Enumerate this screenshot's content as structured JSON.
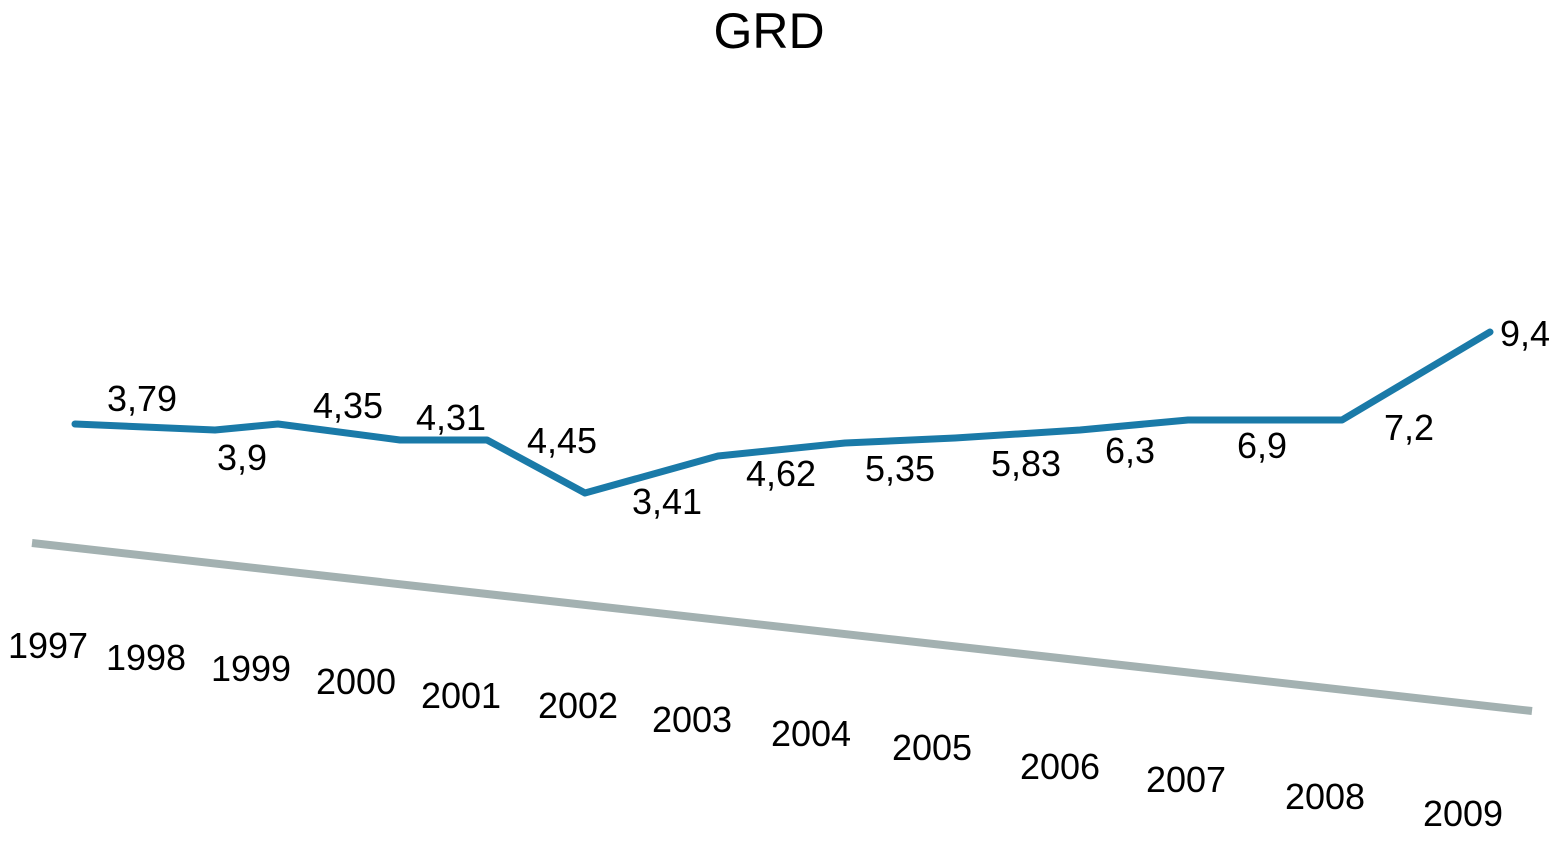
{
  "chart_data": {
    "type": "line",
    "title": "GRD",
    "xlabel": "",
    "ylabel": "",
    "categories": [
      "1997",
      "1998",
      "1999",
      "2000",
      "2001",
      "2002",
      "2003",
      "2004",
      "2005",
      "2006",
      "2007",
      "2008",
      "2009"
    ],
    "series": [
      {
        "values": [
          3.79,
          3.9,
          4.35,
          4.31,
          4.45,
          3.41,
          4.62,
          5.35,
          5.83,
          6.3,
          6.9,
          7.2,
          9.4
        ],
        "data_labels": [
          "3,79",
          "3,9",
          "4,35",
          "4,31",
          "4,45",
          "3,41",
          "4,62",
          "5,35",
          "5,83",
          "6,3",
          "6,9",
          "7,2",
          "9,4"
        ],
        "color": "#1a7aa8"
      }
    ],
    "axis_color": "#a3b1b1",
    "grid": false,
    "legend": "none"
  }
}
